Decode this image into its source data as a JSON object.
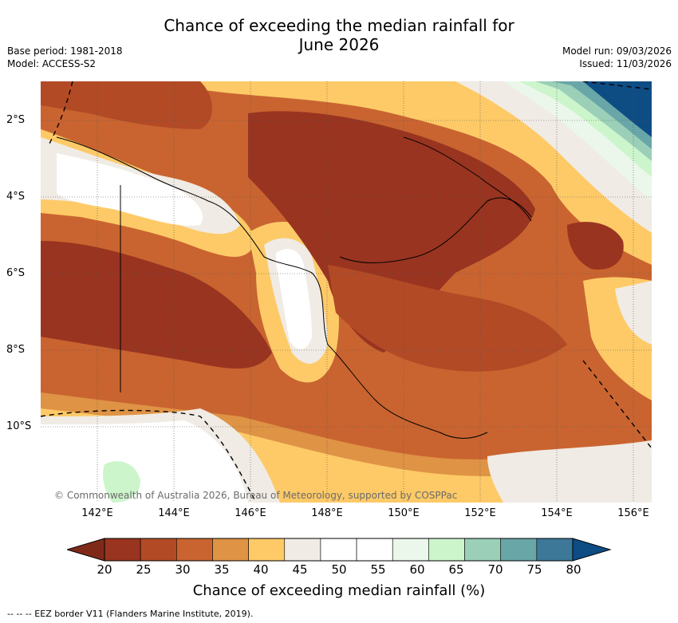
{
  "header": {
    "title_line1": "Chance of exceeding the median rainfall for",
    "title_line2": "June 2026",
    "base_period": "Base period: 1981-2018",
    "model": "Model: ACCESS-S2",
    "model_run": "Model run: 09/03/2026",
    "issued": "Issued: 11/03/2026"
  },
  "map": {
    "lon_ticks": [
      "142°E",
      "144°E",
      "146°E",
      "148°E",
      "150°E",
      "152°E",
      "154°E",
      "156°E"
    ],
    "lat_ticks": [
      "2°S",
      "4°S",
      "6°S",
      "8°S",
      "10°S"
    ],
    "credit": "© Commonwealth of Australia 2026, Bureau of Meteorology, supported by COSPPac"
  },
  "colorbar": {
    "label": "Chance of exceeding median rainfall (%)",
    "ticks": [
      "20",
      "25",
      "30",
      "35",
      "40",
      "45",
      "50",
      "55",
      "60",
      "65",
      "70",
      "75",
      "80"
    ],
    "colors": [
      "#993420",
      "#b24a26",
      "#c96430",
      "#df9345",
      "#fdca67",
      "#f0ebe4",
      "#ffffff",
      "#ffffff",
      "#eaf7ea",
      "#ccf5cc",
      "#9bcfb8",
      "#69a6a8",
      "#3d7899"
    ],
    "low_extend_color": "#7f2a18",
    "high_extend_color": "#0e4c84"
  },
  "footer": {
    "legend_text": "--  --  -- EEZ border V11 (Flanders Marine Institute, 2019)."
  }
}
